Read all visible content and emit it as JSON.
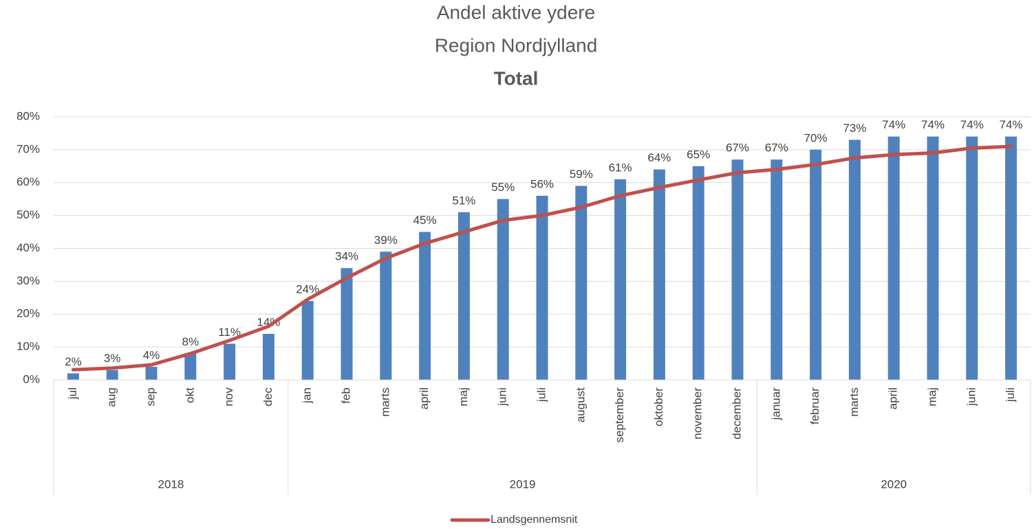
{
  "chart_data": {
    "type": "bar",
    "title": [
      "Andel aktive ydere",
      "Region Nordjylland",
      "Total"
    ],
    "groups": [
      {
        "name": "2018",
        "categories": [
          "jul",
          "aug",
          "sep",
          "okt",
          "nov",
          "dec"
        ]
      },
      {
        "name": "2019",
        "categories": [
          "jan",
          "feb",
          "marts",
          "april",
          "maj",
          "juni",
          "juli",
          "august",
          "september",
          "oktober",
          "november",
          "december"
        ]
      },
      {
        "name": "2020",
        "categories": [
          "januar",
          "februar",
          "marts",
          "april",
          "maj",
          "juni",
          "juli"
        ]
      }
    ],
    "values": [
      2,
      3,
      4,
      8,
      11,
      14,
      24,
      34,
      39,
      45,
      51,
      55,
      56,
      59,
      61,
      64,
      65,
      67,
      67,
      70,
      73,
      74,
      74,
      74,
      74
    ],
    "value_labels": [
      "2%",
      "3%",
      "4%",
      "8%",
      "11%",
      "14%",
      "24%",
      "34%",
      "39%",
      "45%",
      "51%",
      "55%",
      "56%",
      "59%",
      "61%",
      "64%",
      "65%",
      "67%",
      "67%",
      "70%",
      "73%",
      "74%",
      "74%",
      "74%",
      "74%"
    ],
    "color": "#4f81bd",
    "series": [
      {
        "name": "Landsgennemsnit",
        "type": "line",
        "color": "#c0504d",
        "values": [
          3.1,
          3.6,
          4.6,
          8,
          12,
          16.3,
          24.5,
          31,
          37,
          41.5,
          45,
          48.5,
          50,
          52.5,
          56,
          58.5,
          60.8,
          63,
          64,
          65.5,
          67.5,
          68.5,
          69,
          70.5,
          71
        ]
      }
    ],
    "ylim": [
      0,
      80
    ],
    "yticks": [
      {
        "value": 0,
        "label": "0%"
      },
      {
        "value": 10,
        "label": "10%"
      },
      {
        "value": 20,
        "label": "20%"
      },
      {
        "value": 30,
        "label": "30%"
      },
      {
        "value": 40,
        "label": "40%"
      },
      {
        "value": 50,
        "label": "50%"
      },
      {
        "value": 60,
        "label": "60%"
      },
      {
        "value": 70,
        "label": "70%"
      },
      {
        "value": 80,
        "label": "80%"
      }
    ],
    "grid": true
  }
}
